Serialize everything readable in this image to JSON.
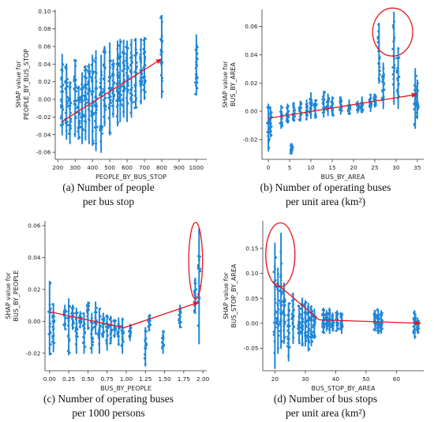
{
  "chart_data": [
    {
      "type": "scatter",
      "xlabel": "PEOPLE_BY_BUS_STOP",
      "ylabel": "SHAP value for\nPEOPLE_BY_BUS_STOP",
      "xlim": [
        185,
        1060
      ],
      "ylim": [
        -0.068,
        0.102
      ],
      "xticks": [
        200,
        300,
        400,
        500,
        600,
        700,
        800,
        900,
        1000
      ],
      "xtick_labels": [
        "200",
        "300",
        "400",
        "500",
        "600",
        "700",
        "800",
        "900",
        "1000"
      ],
      "yticks": [
        -0.06,
        -0.04,
        -0.02,
        0.0,
        0.02,
        0.04,
        0.06,
        0.08,
        0.1
      ],
      "ytick_labels": [
        "-0.06",
        "-0.04",
        "-0.02",
        "0.00",
        "0.02",
        "0.04",
        "0.06",
        "0.08",
        "0.10"
      ],
      "clusters": [
        {
          "x": 225,
          "y": [
            -0.04,
            0.051
          ]
        },
        {
          "x": 250,
          "y": [
            -0.045,
            0.04
          ]
        },
        {
          "x": 270,
          "y": [
            -0.05,
            0.02
          ]
        },
        {
          "x": 300,
          "y": [
            -0.042,
            0.045
          ]
        },
        {
          "x": 320,
          "y": [
            -0.045,
            0.015
          ]
        },
        {
          "x": 340,
          "y": [
            -0.05,
            0.03
          ]
        },
        {
          "x": 360,
          "y": [
            -0.046,
            0.038
          ]
        },
        {
          "x": 380,
          "y": [
            -0.05,
            0.04
          ]
        },
        {
          "x": 400,
          "y": [
            -0.052,
            0.05
          ]
        },
        {
          "x": 420,
          "y": [
            -0.058,
            0.055
          ]
        },
        {
          "x": 450,
          "y": [
            -0.06,
            0.05
          ]
        },
        {
          "x": 470,
          "y": [
            -0.03,
            0.06
          ]
        },
        {
          "x": 500,
          "y": [
            -0.04,
            0.064
          ]
        },
        {
          "x": 520,
          "y": [
            -0.02,
            0.045
          ]
        },
        {
          "x": 545,
          "y": [
            -0.03,
            0.066
          ]
        },
        {
          "x": 560,
          "y": [
            -0.025,
            0.068
          ]
        },
        {
          "x": 580,
          "y": [
            -0.02,
            0.067
          ]
        },
        {
          "x": 600,
          "y": [
            -0.025,
            0.066
          ]
        },
        {
          "x": 625,
          "y": [
            -0.02,
            0.068
          ]
        },
        {
          "x": 650,
          "y": [
            -0.01,
            0.069
          ]
        },
        {
          "x": 680,
          "y": [
            -0.005,
            0.068
          ]
        },
        {
          "x": 700,
          "y": [
            0.0,
            0.07
          ]
        },
        {
          "x": 800,
          "y": [
            0.002,
            0.095
          ]
        },
        {
          "x": 1000,
          "y": [
            0.005,
            0.073
          ]
        }
      ],
      "trend_line": {
        "x": [
          225,
          800
        ],
        "y": [
          -0.025,
          0.046
        ]
      },
      "highlights": [],
      "point_color": "#1f87d6",
      "trend_color": "#e8141c"
    },
    {
      "type": "scatter",
      "xlabel": "BUS_BY_AREA",
      "ylabel": "SHAP value for\nBUS_BY_AREA",
      "xlim": [
        -1.5,
        36.5
      ],
      "ylim": [
        -0.034,
        0.072
      ],
      "xticks": [
        0,
        5,
        10,
        15,
        20,
        25,
        30,
        35
      ],
      "xtick_labels": [
        "0",
        "5",
        "10",
        "15",
        "20",
        "25",
        "30",
        "35"
      ],
      "yticks": [
        -0.02,
        0.0,
        0.02,
        0.04,
        0.06
      ],
      "ytick_labels": [
        "-0.02",
        "0.00",
        "0.02",
        "0.04",
        "0.06"
      ],
      "clusters": [
        {
          "x": 0,
          "y": [
            -0.028,
            0.005
          ]
        },
        {
          "x": 0.5,
          "y": [
            -0.018,
            0.003
          ]
        },
        {
          "x": 3,
          "y": [
            -0.012,
            0.004
          ]
        },
        {
          "x": 4.5,
          "y": [
            -0.008,
            0.005
          ]
        },
        {
          "x": 5.5,
          "y": [
            -0.03,
            -0.023
          ]
        },
        {
          "x": 6,
          "y": [
            -0.007,
            0.006
          ]
        },
        {
          "x": 7.5,
          "y": [
            -0.007,
            0.007
          ]
        },
        {
          "x": 9,
          "y": [
            -0.006,
            0.008
          ]
        },
        {
          "x": 10,
          "y": [
            -0.005,
            0.013
          ]
        },
        {
          "x": 11,
          "y": [
            -0.005,
            0.008
          ]
        },
        {
          "x": 13,
          "y": [
            -0.004,
            0.014
          ]
        },
        {
          "x": 14,
          "y": [
            -0.003,
            0.012
          ]
        },
        {
          "x": 15,
          "y": [
            -0.003,
            0.01
          ]
        },
        {
          "x": 17,
          "y": [
            -0.002,
            0.01
          ]
        },
        {
          "x": 19,
          "y": [
            -0.002,
            0.008
          ]
        },
        {
          "x": 21,
          "y": [
            -0.001,
            0.007
          ]
        },
        {
          "x": 22,
          "y": [
            -0.001,
            0.01
          ]
        },
        {
          "x": 24,
          "y": [
            0.0,
            0.012
          ]
        },
        {
          "x": 25,
          "y": [
            0.003,
            0.012
          ]
        },
        {
          "x": 26,
          "y": [
            0.02,
            0.062
          ]
        },
        {
          "x": 27,
          "y": [
            0.002,
            0.034
          ]
        },
        {
          "x": 29.5,
          "y": [
            0.005,
            0.07
          ]
        },
        {
          "x": 30.5,
          "y": [
            0.002,
            0.045
          ]
        },
        {
          "x": 34.5,
          "y": [
            -0.012,
            0.03
          ]
        },
        {
          "x": 35,
          "y": [
            -0.005,
            0.022
          ]
        }
      ],
      "trend_line": {
        "x": [
          0,
          35
        ],
        "y": [
          -0.005,
          0.012
        ]
      },
      "highlights": [
        {
          "cx": 29.2,
          "cy": 0.056,
          "rx": 4.7,
          "ry": 0.017
        }
      ],
      "point_color": "#1f87d6",
      "trend_color": "#e8141c"
    },
    {
      "type": "scatter",
      "xlabel": "BUS_BY_PEOPLE",
      "ylabel": "SHAP value for\nBUS_BY_PEOPLE",
      "xlim": [
        -0.06,
        2.05
      ],
      "ylim": [
        -0.031,
        0.063
      ],
      "xticks": [
        0.0,
        0.25,
        0.5,
        0.75,
        1.0,
        1.25,
        1.5,
        1.75,
        2.0
      ],
      "xtick_labels": [
        "0.00",
        "0.25",
        "0.50",
        "0.75",
        "1.00",
        "1.25",
        "1.50",
        "1.75",
        "2.00"
      ],
      "yticks": [
        -0.02,
        0.0,
        0.02,
        0.04,
        0.06
      ],
      "ytick_labels": [
        "-0.02",
        "0.00",
        "0.02",
        "0.04",
        "0.06"
      ],
      "clusters": [
        {
          "x": 0.0,
          "y": [
            -0.021,
            0.025
          ]
        },
        {
          "x": 0.05,
          "y": [
            -0.019,
            0.011
          ]
        },
        {
          "x": 0.2,
          "y": [
            -0.005,
            0.01
          ]
        },
        {
          "x": 0.25,
          "y": [
            -0.021,
            0.014
          ]
        },
        {
          "x": 0.3,
          "y": [
            -0.005,
            0.01
          ]
        },
        {
          "x": 0.35,
          "y": [
            -0.02,
            0.008
          ]
        },
        {
          "x": 0.4,
          "y": [
            -0.004,
            0.006
          ]
        },
        {
          "x": 0.45,
          "y": [
            -0.02,
            0.005
          ]
        },
        {
          "x": 0.5,
          "y": [
            -0.005,
            0.012
          ]
        },
        {
          "x": 0.55,
          "y": [
            -0.02,
            0.005
          ]
        },
        {
          "x": 0.6,
          "y": [
            -0.008,
            0.012
          ]
        },
        {
          "x": 0.65,
          "y": [
            -0.02,
            0.008
          ]
        },
        {
          "x": 0.7,
          "y": [
            -0.01,
            0.005
          ]
        },
        {
          "x": 0.75,
          "y": [
            -0.018,
            0.004
          ]
        },
        {
          "x": 0.8,
          "y": [
            -0.014,
            0.003
          ]
        },
        {
          "x": 0.85,
          "y": [
            -0.01,
            0.001
          ]
        },
        {
          "x": 0.9,
          "y": [
            -0.015,
            0.002
          ]
        },
        {
          "x": 0.95,
          "y": [
            -0.02,
            0.002
          ]
        },
        {
          "x": 1.05,
          "y": [
            -0.012,
            -0.002
          ]
        },
        {
          "x": 1.25,
          "y": [
            -0.028,
            -0.004
          ]
        },
        {
          "x": 1.3,
          "y": [
            -0.006,
            0.004
          ]
        },
        {
          "x": 1.48,
          "y": [
            -0.02,
            -0.006
          ]
        },
        {
          "x": 1.7,
          "y": [
            -0.004,
            0.01
          ]
        },
        {
          "x": 1.9,
          "y": [
            0.005,
            0.027
          ]
        },
        {
          "x": 1.95,
          "y": [
            -0.014,
            0.058
          ]
        }
      ],
      "trend_line": {
        "x": [
          0.0,
          0.97,
          1.95
        ],
        "y": [
          0.006,
          -0.004,
          0.012
        ]
      },
      "highlights": [
        {
          "cx": 1.905,
          "cy": 0.038,
          "rx": 0.09,
          "ry": 0.024
        }
      ],
      "point_color": "#1f87d6",
      "trend_color": "#e8141c"
    },
    {
      "type": "scatter",
      "xlabel": "BUS_STOP_BY_AREA",
      "ylabel": "SHAP value for\nBUS_STOP_BY_AREA",
      "xlim": [
        16,
        69
      ],
      "ylim": [
        -0.095,
        0.205
      ],
      "xticks": [
        20,
        30,
        40,
        50,
        60
      ],
      "xtick_labels": [
        "20",
        "30",
        "40",
        "50",
        "60"
      ],
      "yticks": [
        -0.05,
        0.0,
        0.05,
        0.1,
        0.15
      ],
      "ytick_labels": [
        "-0.05",
        "0.00",
        "0.05",
        "0.10",
        "0.15"
      ],
      "clusters": [
        {
          "x": 20,
          "y": [
            -0.09,
            0.16
          ]
        },
        {
          "x": 21,
          "y": [
            -0.06,
            0.11
          ]
        },
        {
          "x": 22,
          "y": [
            -0.05,
            0.18
          ]
        },
        {
          "x": 23,
          "y": [
            -0.04,
            0.08
          ]
        },
        {
          "x": 24.5,
          "y": [
            -0.075,
            0.04
          ]
        },
        {
          "x": 26,
          "y": [
            -0.04,
            0.06
          ]
        },
        {
          "x": 28,
          "y": [
            -0.04,
            0.035
          ]
        },
        {
          "x": 29,
          "y": [
            -0.045,
            0.05
          ]
        },
        {
          "x": 30,
          "y": [
            -0.045,
            0.045
          ]
        },
        {
          "x": 31,
          "y": [
            -0.055,
            0.04
          ]
        },
        {
          "x": 32,
          "y": [
            -0.045,
            0.035
          ]
        },
        {
          "x": 33,
          "y": [
            -0.03,
            0.028
          ]
        },
        {
          "x": 36,
          "y": [
            -0.02,
            0.03
          ]
        },
        {
          "x": 37,
          "y": [
            -0.015,
            0.025
          ]
        },
        {
          "x": 38,
          "y": [
            -0.02,
            0.03
          ]
        },
        {
          "x": 39,
          "y": [
            -0.015,
            0.02
          ]
        },
        {
          "x": 40.5,
          "y": [
            -0.015,
            0.025
          ]
        },
        {
          "x": 42,
          "y": [
            -0.02,
            0.02
          ]
        },
        {
          "x": 53,
          "y": [
            -0.015,
            0.025
          ]
        },
        {
          "x": 54,
          "y": [
            -0.02,
            0.028
          ]
        },
        {
          "x": 55,
          "y": [
            -0.02,
            0.025
          ]
        },
        {
          "x": 66,
          "y": [
            -0.03,
            0.025
          ]
        },
        {
          "x": 67,
          "y": [
            -0.02,
            0.01
          ]
        }
      ],
      "trend_line": {
        "x": [
          20.5,
          34.5,
          68
        ],
        "y": [
          0.08,
          0.007,
          0.0
        ]
      },
      "highlights": [
        {
          "cx": 21.8,
          "cy": 0.137,
          "rx": 4.8,
          "ry": 0.064
        }
      ],
      "point_color": "#1f87d6",
      "trend_color": "#e8141c"
    }
  ],
  "captions": [
    {
      "line1": "(a) Number of people",
      "line2": "per bus stop"
    },
    {
      "line1": "(b) Number of operating buses",
      "line2": "per unit area (km²)"
    },
    {
      "line1": "(c) Number of operating buses",
      "line2": "per 1000 persons"
    },
    {
      "line1": "(d) Number of bus stops",
      "line2": "per unit area (km²)"
    }
  ]
}
